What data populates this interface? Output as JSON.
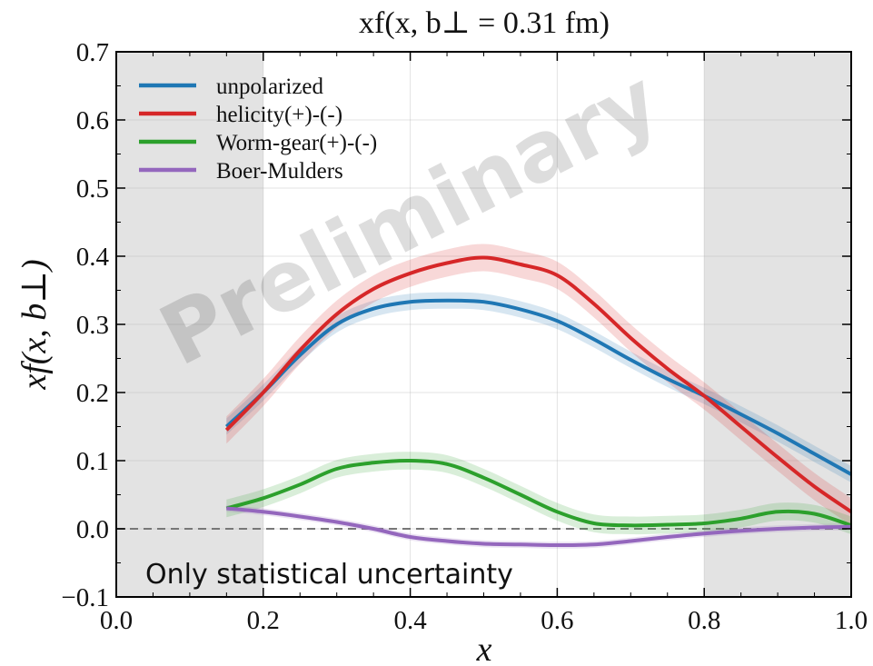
{
  "chart_data": {
    "type": "line",
    "title": "xf(x, b⊥ = 0.31 fm)",
    "xlabel": "x",
    "ylabel": "xf(x, b⊥)",
    "xlim": [
      0.0,
      1.0
    ],
    "ylim": [
      -0.1,
      0.7
    ],
    "x_ticks": [
      "0.0",
      "0.2",
      "0.4",
      "0.6",
      "0.8",
      "1.0"
    ],
    "y_ticks": [
      "−0.1",
      "0.0",
      "0.1",
      "0.2",
      "0.3",
      "0.4",
      "0.5",
      "0.6",
      "0.7"
    ],
    "grid": true,
    "legend_position": "top-left",
    "shaded_regions": [
      [
        0.0,
        0.2
      ],
      [
        0.8,
        1.0
      ]
    ],
    "reference_line_y": 0.0,
    "watermark": "Preliminary",
    "annotation": "Only statistical uncertainty",
    "series": [
      {
        "name": "unpolarized",
        "color": "#1f77b4",
        "x": [
          0.15,
          0.2,
          0.25,
          0.3,
          0.35,
          0.4,
          0.45,
          0.5,
          0.55,
          0.6,
          0.65,
          0.7,
          0.75,
          0.8,
          0.85,
          0.9,
          0.95,
          1.0
        ],
        "y": [
          0.15,
          0.2,
          0.255,
          0.3,
          0.323,
          0.333,
          0.335,
          0.333,
          0.322,
          0.305,
          0.278,
          0.248,
          0.22,
          0.195,
          0.168,
          0.14,
          0.11,
          0.08
        ],
        "band": 0.012
      },
      {
        "name": "helicity(+)-(-)",
        "color": "#d62728",
        "x": [
          0.15,
          0.2,
          0.25,
          0.3,
          0.35,
          0.4,
          0.45,
          0.5,
          0.55,
          0.6,
          0.65,
          0.7,
          0.75,
          0.8,
          0.85,
          0.9,
          0.95,
          1.0
        ],
        "y": [
          0.145,
          0.2,
          0.262,
          0.315,
          0.352,
          0.375,
          0.39,
          0.398,
          0.388,
          0.372,
          0.33,
          0.28,
          0.235,
          0.195,
          0.15,
          0.105,
          0.062,
          0.025
        ],
        "band": 0.02
      },
      {
        "name": "Worm-gear(+)-(-)",
        "color": "#2ca02c",
        "x": [
          0.15,
          0.2,
          0.25,
          0.3,
          0.35,
          0.4,
          0.45,
          0.5,
          0.55,
          0.6,
          0.65,
          0.7,
          0.75,
          0.8,
          0.85,
          0.9,
          0.95,
          1.0
        ],
        "y": [
          0.03,
          0.045,
          0.065,
          0.088,
          0.097,
          0.1,
          0.095,
          0.075,
          0.05,
          0.025,
          0.008,
          0.005,
          0.006,
          0.008,
          0.015,
          0.025,
          0.022,
          0.005
        ],
        "band": 0.013
      },
      {
        "name": "Boer-Mulders",
        "color": "#9467bd",
        "x": [
          0.15,
          0.2,
          0.25,
          0.3,
          0.35,
          0.4,
          0.45,
          0.5,
          0.55,
          0.6,
          0.65,
          0.7,
          0.75,
          0.8,
          0.85,
          0.9,
          0.95,
          1.0
        ],
        "y": [
          0.03,
          0.025,
          0.018,
          0.01,
          0.0,
          -0.012,
          -0.018,
          -0.022,
          -0.023,
          -0.024,
          -0.023,
          -0.018,
          -0.012,
          -0.007,
          -0.003,
          0.0,
          0.002,
          0.003
        ],
        "band": 0.005
      }
    ]
  }
}
